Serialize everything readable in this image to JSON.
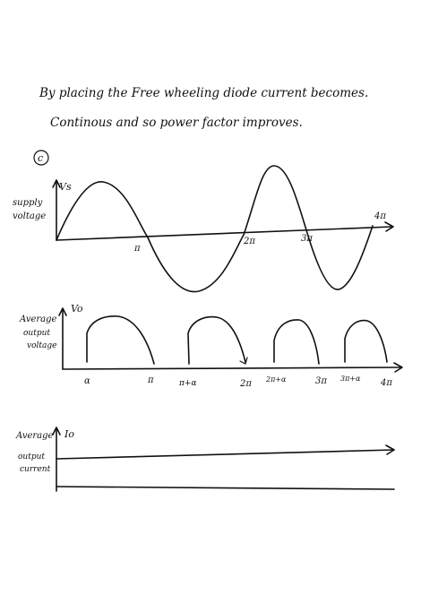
{
  "note": {
    "line1": "By placing the Free wheeling diode current becomes.",
    "line2": "Continous and so power factor improves.",
    "part_label": "c"
  },
  "graph1": {
    "y_label_line1": "supply",
    "y_label_line2": "voltage",
    "axis_symbol": "Vs",
    "ticks": [
      "π",
      "2π",
      "3π",
      "4π"
    ]
  },
  "graph2": {
    "y_label_line1": "Average",
    "y_label_line2": "output",
    "y_label_line3": "voltage",
    "axis_symbol": "Vo",
    "ticks": [
      "α",
      "π",
      "π+α",
      "2π",
      "2π+α",
      "3π",
      "3π+α",
      "4π"
    ]
  },
  "graph3": {
    "y_label_line1": "Average",
    "y_label_line2": "output",
    "y_label_line3": "current",
    "axis_symbol": "Io"
  }
}
